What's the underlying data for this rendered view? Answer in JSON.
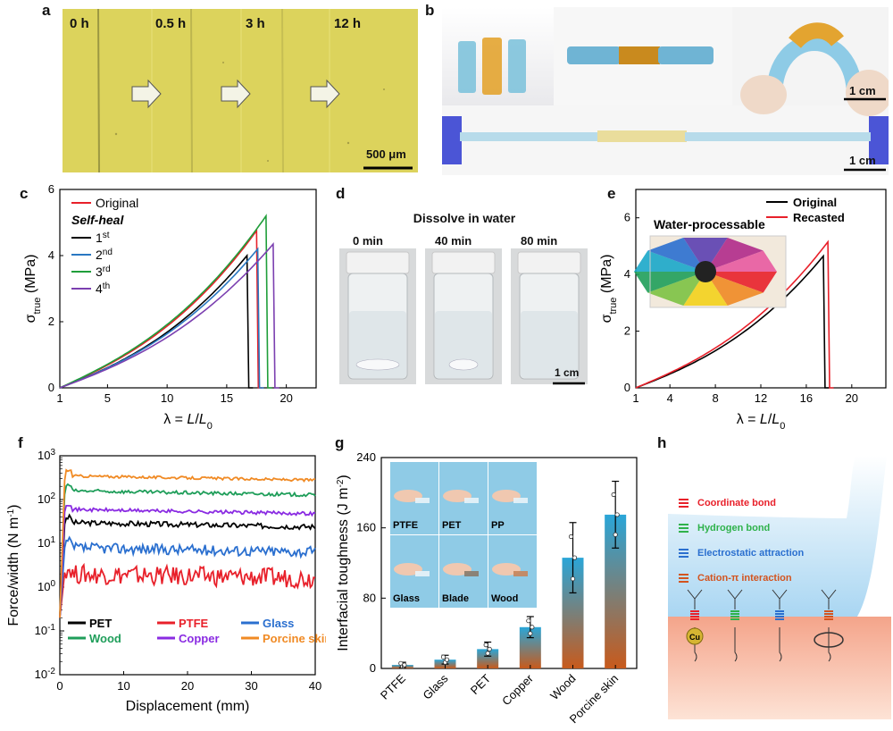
{
  "panel_labels": {
    "a": "a",
    "b": "b",
    "c": "c",
    "d": "d",
    "e": "e",
    "f": "f",
    "g": "g",
    "h": "h"
  },
  "panel_a": {
    "times": [
      "0 h",
      "0.5 h",
      "3 h",
      "12 h"
    ],
    "scale_bar": "500 μm",
    "colors": {
      "film": "#dcd35c",
      "arrow": "#f4f4e6"
    }
  },
  "panel_b": {
    "scale_bars": [
      "1 cm",
      "1 cm"
    ],
    "colors": {
      "blue_gel": "#7fc3dc",
      "orange_gel": "#e3a430",
      "glove": "#4b55d6"
    }
  },
  "panel_d": {
    "title": "Dissolve in water",
    "times": [
      "0 min",
      "40 min",
      "80 min"
    ],
    "scale_bar": "1 cm"
  },
  "panel_h": {
    "legend": [
      {
        "label": "Coordinate bond",
        "color": "#e8202a"
      },
      {
        "label": "Hydrogen bond",
        "color": "#2fb24b"
      },
      {
        "label": "Electrostatic attraction",
        "color": "#2a6fcf"
      },
      {
        "label": "Cation-π interaction",
        "color": "#d3541f"
      }
    ],
    "cu_label": "Cu",
    "colors": {
      "gel": "#bfe1f5",
      "substrate": "#f6b39a"
    }
  },
  "chart_data": [
    {
      "panel": "c",
      "type": "line",
      "xlabel": "λ = L/L0",
      "ylabel": "σtrue (MPa)",
      "xlim": [
        1,
        22.5
      ],
      "ylim": [
        0,
        6
      ],
      "xticks": [
        1,
        5,
        10,
        15,
        20
      ],
      "yticks": [
        0,
        2,
        4,
        6
      ],
      "legend_heading": "Self-heal",
      "series": [
        {
          "name": "Original",
          "color": "#e8202a",
          "x_break": 17.5,
          "y_peak": 4.75
        },
        {
          "name": "1st",
          "color": "#000000",
          "x_break": 16.7,
          "y_peak": 4.0
        },
        {
          "name": "2nd",
          "color": "#2a78c2",
          "x_break": 17.6,
          "y_peak": 4.2
        },
        {
          "name": "3rd",
          "color": "#1f9e3a",
          "x_break": 18.3,
          "y_peak": 5.2
        },
        {
          "name": "4th",
          "color": "#7b3fb0",
          "x_break": 18.9,
          "y_peak": 4.35
        }
      ]
    },
    {
      "panel": "e",
      "type": "line",
      "xlabel": "λ = L/L0",
      "ylabel": "σtrue (MPa)",
      "xlim": [
        1,
        23
      ],
      "ylim": [
        0,
        7
      ],
      "xticks": [
        1,
        4,
        8,
        12,
        16,
        20
      ],
      "yticks": [
        0,
        2,
        4,
        6
      ],
      "inset_title": "Water-processable",
      "series": [
        {
          "name": "Original",
          "color": "#000000",
          "x_break": 17.5,
          "y_peak": 4.65
        },
        {
          "name": "Recasted",
          "color": "#e8202a",
          "x_break": 17.9,
          "y_peak": 5.15
        }
      ]
    },
    {
      "panel": "f",
      "type": "line",
      "xlabel": "Displacement (mm)",
      "ylabel": "Force/width (N m-1)",
      "xlim": [
        0,
        40
      ],
      "ylim_log10": [
        -2,
        3
      ],
      "xticks": [
        0,
        10,
        20,
        30,
        40
      ],
      "ytick_labels": [
        "10-2",
        "10-1",
        "100",
        "101",
        "102",
        "103"
      ],
      "series": [
        {
          "name": "PET",
          "color": "#000000",
          "plateau": 30
        },
        {
          "name": "PTFE",
          "color": "#e8202a",
          "plateau": 2
        },
        {
          "name": "Glass",
          "color": "#2a6fcf",
          "plateau": 8
        },
        {
          "name": "Wood",
          "color": "#1f9e5a",
          "plateau": 160
        },
        {
          "name": "Copper",
          "color": "#8a2be2",
          "plateau": 60
        },
        {
          "name": "Porcine skin",
          "color": "#f08a24",
          "plateau": 350
        }
      ]
    },
    {
      "panel": "g",
      "type": "bar",
      "ylabel": "Interfacial toughness (J m-2)",
      "ylim": [
        0,
        240
      ],
      "yticks": [
        0,
        80,
        160,
        240
      ],
      "categories": [
        "PTFE",
        "Glass",
        "PET",
        "Copper",
        "Wood",
        "Porcine skin"
      ],
      "values": [
        4,
        10,
        22,
        47,
        126,
        175
      ],
      "errors": [
        3,
        5,
        8,
        12,
        40,
        38
      ],
      "inset_labels": [
        "PTFE",
        "PET",
        "PP",
        "Glass",
        "Blade",
        "Wood"
      ]
    }
  ]
}
